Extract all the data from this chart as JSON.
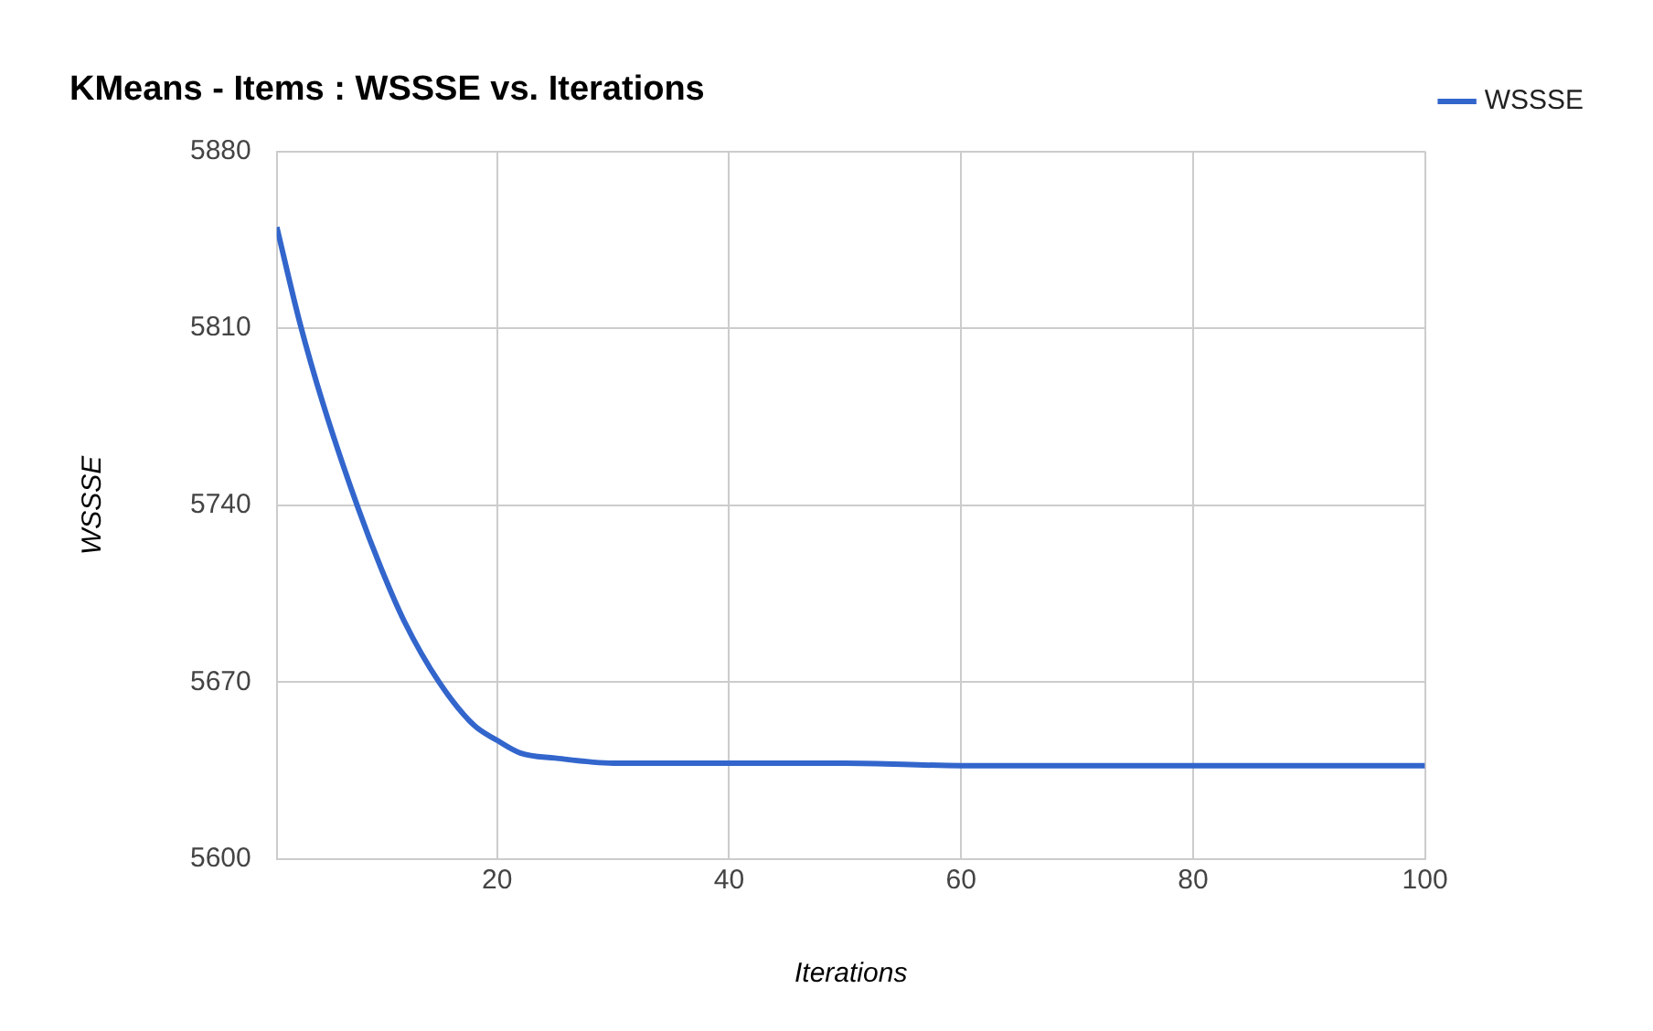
{
  "chart_data": {
    "type": "line",
    "title": "KMeans - Items : WSSSE vs. Iterations",
    "xlabel": "Iterations",
    "ylabel": "WSSSE",
    "series": [
      {
        "name": "WSSSE",
        "color": "#3366cc",
        "x": [
          1,
          3,
          5,
          8,
          10,
          12,
          15,
          18,
          20,
          22,
          25,
          30,
          40,
          50,
          60,
          70,
          80,
          100
        ],
        "values": [
          5850,
          5812,
          5780,
          5739,
          5715,
          5694,
          5670,
          5653,
          5647,
          5642,
          5640,
          5638,
          5638,
          5638,
          5637,
          5637,
          5637,
          5637
        ]
      }
    ],
    "xlim": [
      1,
      100
    ],
    "xticks": [
      20,
      40,
      60,
      80,
      100
    ],
    "ylim": [
      5600,
      5880
    ],
    "yticks": [
      5600,
      5670,
      5740,
      5810,
      5880
    ],
    "grid": true,
    "legend": "top right",
    "marker": "none",
    "line_style": "solid"
  }
}
